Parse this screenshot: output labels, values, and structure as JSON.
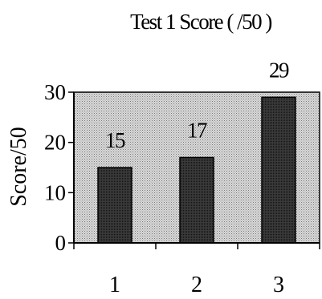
{
  "chart_data": {
    "type": "bar",
    "title": "Test 1 Score ( /50 )",
    "xlabel": "",
    "ylabel": "Score/50",
    "categories": [
      "1",
      "2",
      "3"
    ],
    "values": [
      15,
      17,
      29
    ],
    "data_labels": [
      "15",
      "17",
      "29"
    ],
    "ylim": [
      0,
      30
    ],
    "yticks": [
      0,
      10,
      20,
      30
    ],
    "grid": false,
    "legend": "none",
    "colors": {
      "plot_background": "#d2d2d2",
      "bar_fill": "#303030",
      "axis": "#000000"
    }
  }
}
